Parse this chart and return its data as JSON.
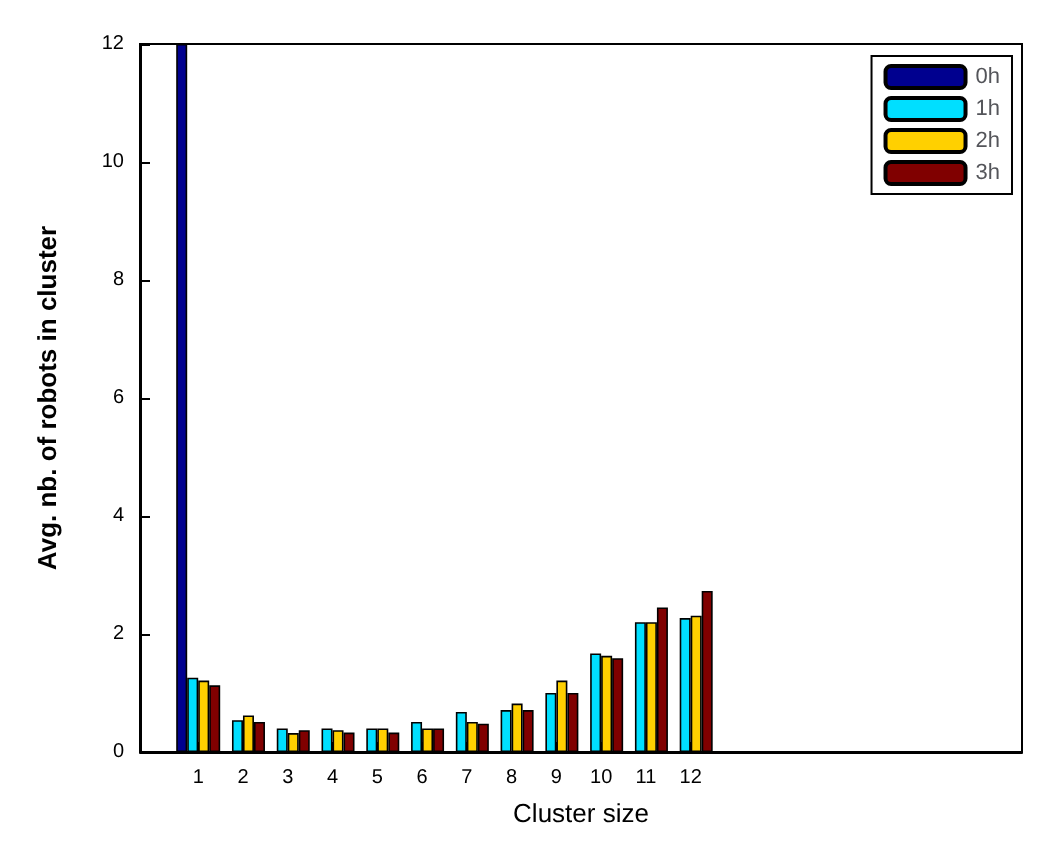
{
  "chart_data": {
    "type": "bar",
    "xlabel": "Cluster size",
    "ylabel": "Avg. nb. of robots in cluster",
    "x": [
      1,
      2,
      3,
      4,
      5,
      6,
      7,
      8,
      9,
      10,
      11,
      12
    ],
    "series": [
      {
        "name": "0h",
        "color": "#00008f",
        "values": [
          12,
          0,
          0,
          0,
          0,
          0,
          0,
          0,
          0,
          0,
          0,
          0
        ]
      },
      {
        "name": "1h",
        "color": "#00dfff",
        "values": [
          1.26,
          0.54,
          0.4,
          0.4,
          0.4,
          0.51,
          0.68,
          0.71,
          1.0,
          1.67,
          2.2,
          2.27
        ]
      },
      {
        "name": "2h",
        "color": "#ffd000",
        "values": [
          1.21,
          0.62,
          0.32,
          0.37,
          0.4,
          0.4,
          0.51,
          0.82,
          1.21,
          1.63,
          2.2,
          2.31
        ]
      },
      {
        "name": "3h",
        "color": "#800000",
        "values": [
          1.13,
          0.51,
          0.37,
          0.33,
          0.33,
          0.4,
          0.48,
          0.71,
          1.0,
          1.59,
          2.45,
          2.73
        ]
      }
    ],
    "xlim": [
      -0.3,
      19.4
    ],
    "xticks": [
      1,
      2,
      3,
      4,
      5,
      6,
      7,
      8,
      9,
      10,
      11,
      12
    ],
    "ylim": [
      0,
      12
    ],
    "yticks": [
      0,
      2,
      4,
      6,
      8,
      10,
      12
    ],
    "grid": false,
    "legend": "top right"
  }
}
